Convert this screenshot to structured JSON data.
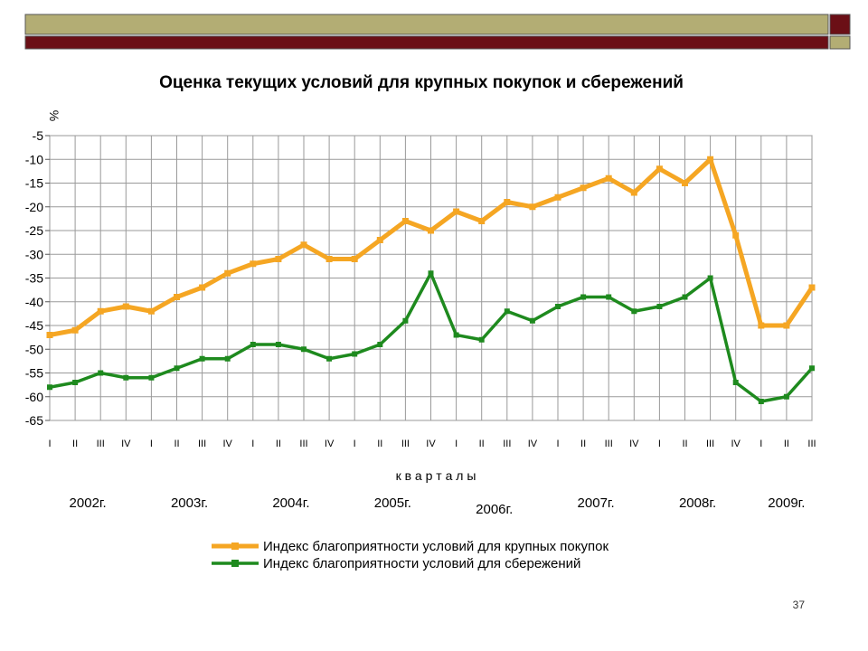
{
  "slide": {
    "number": "37",
    "colors": {
      "banner_olive": "#b3ad74",
      "banner_maroon": "#6b0f16"
    }
  },
  "chart_data": {
    "type": "line",
    "title": "Оценка текущих условий для крупных покупок и сбережений",
    "ylabel": "%",
    "xlabel": "к в а р т а л ы",
    "ylim": [
      -65,
      -5
    ],
    "yticks": [
      -5,
      -10,
      -15,
      -20,
      -25,
      -30,
      -35,
      -40,
      -45,
      -50,
      -55,
      -60,
      -65
    ],
    "grid": true,
    "legend_position": "bottom",
    "categories": [
      "I",
      "II",
      "III",
      "IV",
      "I",
      "II",
      "III",
      "IV",
      "I",
      "II",
      "III",
      "IV",
      "I",
      "II",
      "III",
      "IV",
      "I",
      "II",
      "III",
      "IV",
      "I",
      "II",
      "III",
      "IV",
      "I",
      "II",
      "III",
      "IV",
      "I",
      "II",
      "III"
    ],
    "years": [
      {
        "label": "2002г.",
        "quarters": 4
      },
      {
        "label": "2003г.",
        "quarters": 4
      },
      {
        "label": "2004г.",
        "quarters": 4
      },
      {
        "label": "2005г.",
        "quarters": 4
      },
      {
        "label": "2006г.",
        "quarters": 4
      },
      {
        "label": "2007г.",
        "quarters": 4
      },
      {
        "label": "2008г.",
        "quarters": 4
      },
      {
        "label": "2009г.",
        "quarters": 3
      }
    ],
    "series": [
      {
        "name": "Индекс благоприятности условий для крупных покупок",
        "color": "#f5a623",
        "values": [
          -47,
          -46,
          -42,
          -41,
          -42,
          -39,
          -37,
          -34,
          -32,
          -31,
          -28,
          -31,
          -31,
          -27,
          -23,
          -25,
          -21,
          -23,
          -19,
          -20,
          -18,
          -16,
          -14,
          -17,
          -12,
          -15,
          -10,
          -26,
          -45,
          -45,
          -37
        ]
      },
      {
        "name": "Индекс благоприятности условий для сбережений",
        "color": "#1e8a1e",
        "values": [
          -58,
          -57,
          -55,
          -56,
          -56,
          -54,
          -52,
          -52,
          -49,
          -49,
          -50,
          -52,
          -51,
          -49,
          -44,
          -34,
          -47,
          -48,
          -42,
          -44,
          -41,
          -39,
          -39,
          -42,
          -41,
          -39,
          -35,
          -57,
          -61,
          -60,
          -54
        ]
      }
    ]
  }
}
